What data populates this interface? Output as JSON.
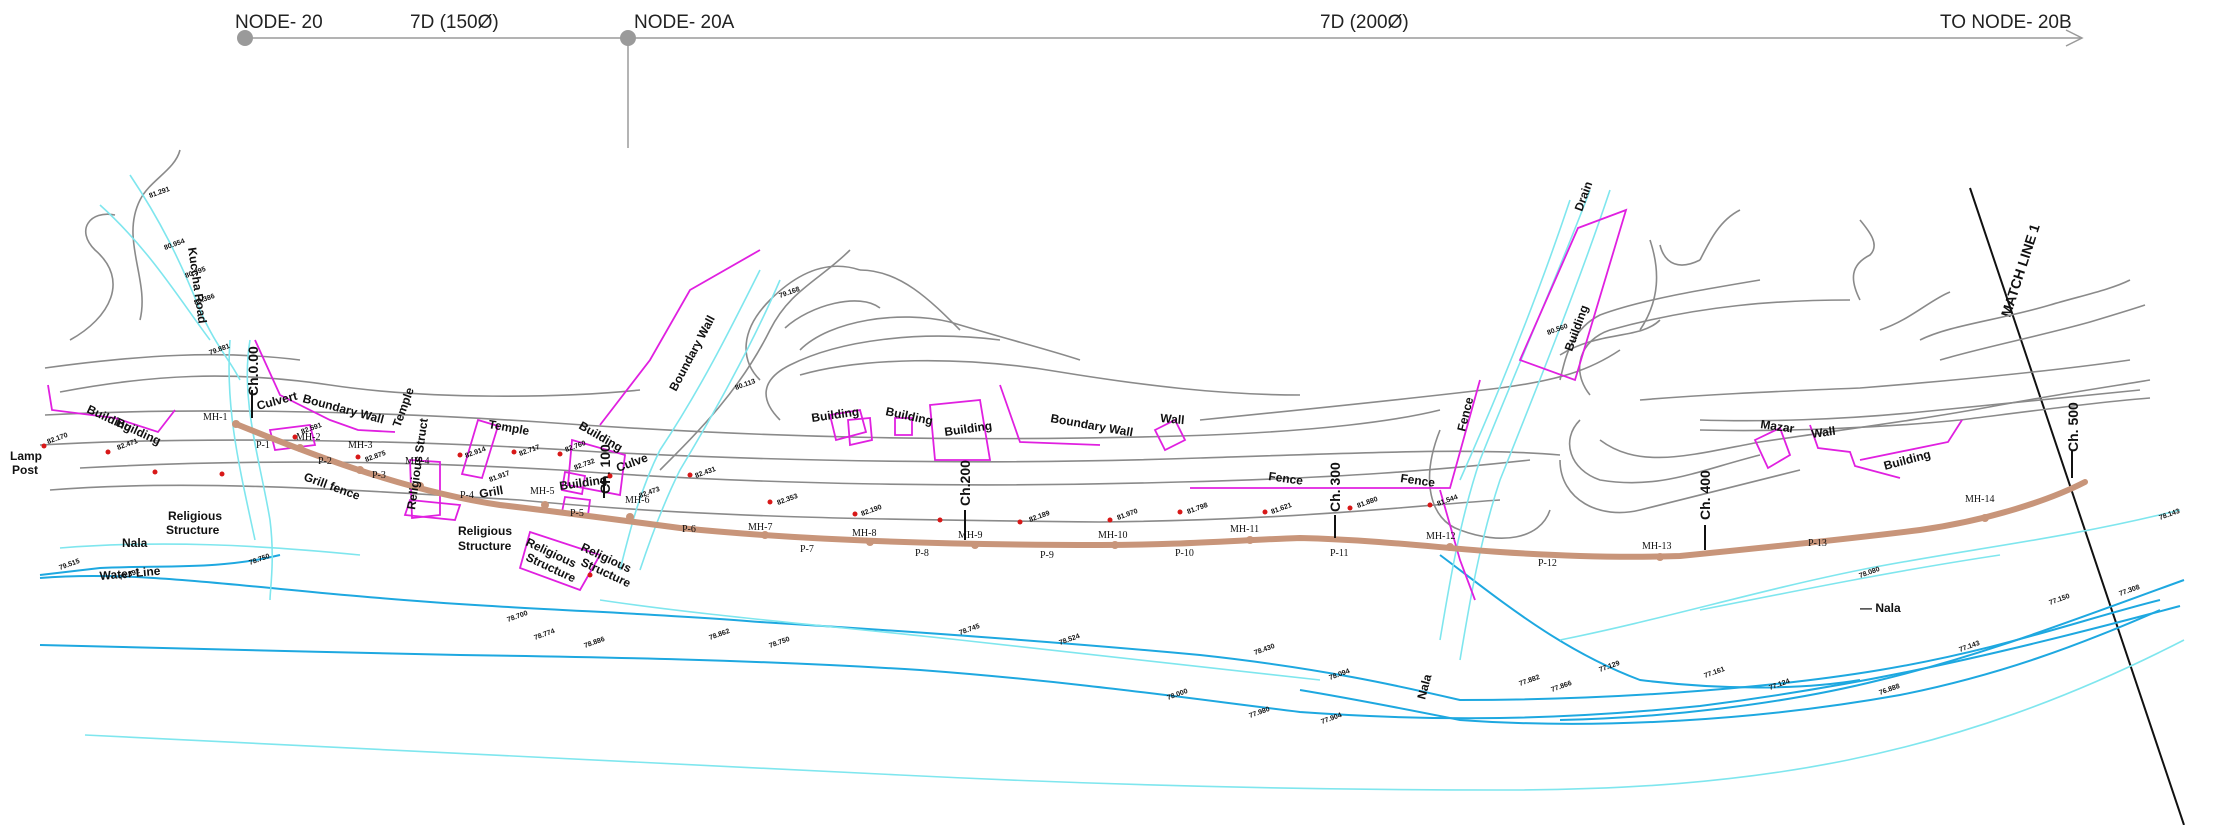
{
  "header": {
    "nodes": [
      {
        "label": "NODE- 20"
      },
      {
        "label": "NODE- 20A"
      },
      {
        "label": "TO NODE- 20B"
      }
    ],
    "segments": [
      {
        "label": "7D  (150Ø)"
      },
      {
        "label": "7D  (200Ø)"
      }
    ]
  },
  "match_line": "MATCH  LINE  1",
  "chainages": [
    "Ch.0.00",
    "Ch. 100",
    "Ch.200",
    "Ch. 300",
    "Ch. 400",
    "Ch. 500"
  ],
  "manholes": [
    "MH-1",
    "MH-2",
    "MH-3",
    "MH-4",
    "MH-5",
    "MH-6",
    "MH-7",
    "MH-8",
    "MH-9",
    "MH-10",
    "MH-11",
    "MH-12",
    "MH-13",
    "MH-14"
  ],
  "pipes": [
    "P-1",
    "P-2",
    "P-3",
    "P-4",
    "P-5",
    "P-6",
    "P-7",
    "P-8",
    "P-9",
    "P-10",
    "P-11",
    "P-12",
    "P-13"
  ],
  "features": {
    "building": "Building",
    "boundary_wall": "Boundary  Wall",
    "boundary_wall_v": "Boundary  Wall",
    "temple": "Temple",
    "culvert": "Culvert",
    "culvert2": "Culve",
    "grill_fence": "Grill  fence",
    "grill": "Grill",
    "religious": "Religious",
    "structure": "Structure",
    "religious_struct": "Religious Struct",
    "water_line": "Water  Line",
    "nala": "Nala",
    "fence": "Fence",
    "wall": "Wall",
    "mazar": "Mazar",
    "lamp": "Lamp",
    "post": "Post",
    "drain": "Drain",
    "kuccha_road": "Kuccha Road",
    "nala_dash": "— Nala"
  },
  "levels": [
    "81.291",
    "80.954",
    "80.395",
    "80.386",
    "79.881",
    "82.170",
    "82.471",
    "82.591",
    "82.875",
    "82.914",
    "82.717",
    "82.760",
    "82.732",
    "81.917",
    "82.473",
    "82.431",
    "82.353",
    "82.190",
    "82.189",
    "81.970",
    "81.798",
    "81.621",
    "81.880",
    "81.544",
    "78.700",
    "79.515",
    "79.392",
    "78.750",
    "78.774",
    "78.886",
    "78.862",
    "78.750",
    "78.745",
    "78.524",
    "78.430",
    "78.094",
    "78.000",
    "77.980",
    "77.904",
    "77.882",
    "77.866",
    "77.129",
    "77.161",
    "77.124",
    "76.888",
    "77.150",
    "77.143",
    "77.308",
    "78.143",
    "78.080",
    "79.168",
    "80.113",
    "80.560"
  ],
  "colors": {
    "contour": "#8a8a8a",
    "water": "#1ea8e0",
    "water_light": "#7fe6ee",
    "structure": "#e020e0",
    "sewer": "#c8957a",
    "level_point": "#d81818"
  }
}
